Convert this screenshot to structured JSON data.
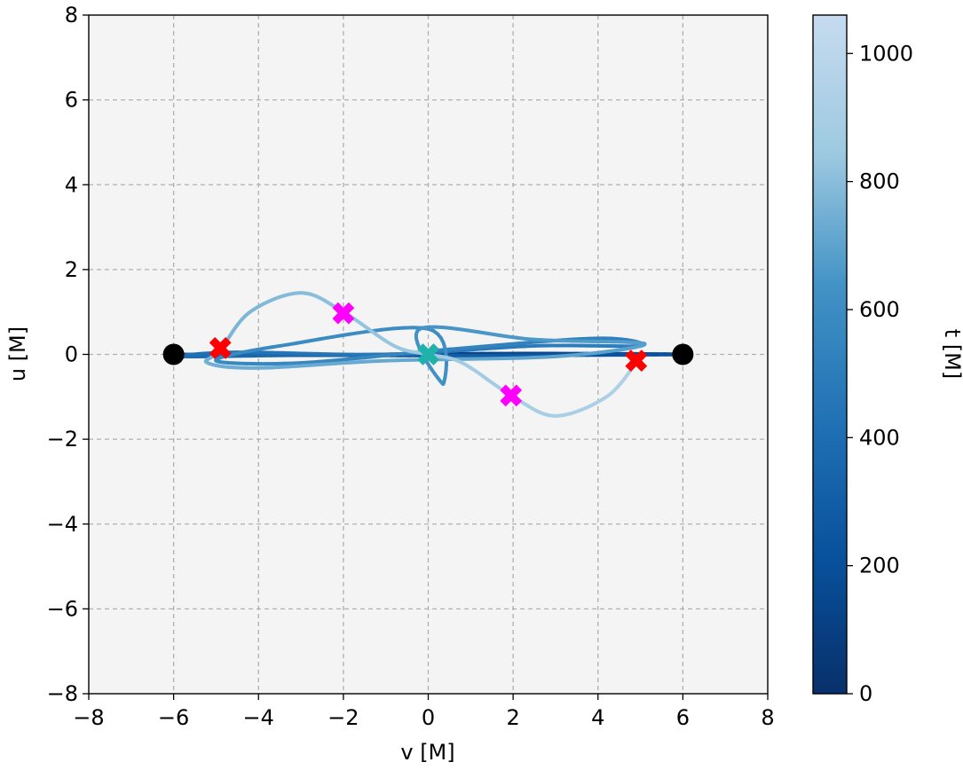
{
  "chart_data": {
    "type": "line",
    "title": "",
    "xlabel": "v [M]",
    "ylabel": "u [M]",
    "xlim": [
      -8,
      8
    ],
    "ylim": [
      -8,
      8
    ],
    "xticks": [
      -8,
      -6,
      -4,
      -2,
      0,
      2,
      4,
      6,
      8
    ],
    "yticks": [
      -8,
      -6,
      -4,
      -2,
      0,
      2,
      4,
      6,
      8
    ],
    "xtick_labels": [
      "−8",
      "−6",
      "−4",
      "−2",
      "0",
      "2",
      "4",
      "6",
      "8"
    ],
    "ytick_labels": [
      "−8",
      "−6",
      "−4",
      "−2",
      "0",
      "2",
      "4",
      "6",
      "8"
    ],
    "grid": true,
    "background_color": "#f4f4f4",
    "colormap": "Blues_r",
    "colorbar": {
      "label": "t [M]",
      "range": [
        0,
        1060
      ],
      "ticks": [
        0,
        200,
        400,
        600,
        800,
        1000
      ],
      "tick_labels": [
        "0",
        "200",
        "400",
        "600",
        "800",
        "1000"
      ],
      "color_low": "#08306b",
      "color_high": "#c6dbef"
    },
    "trajectory": [
      {
        "t": 0,
        "v": -6.0,
        "u": 0.0
      },
      {
        "t": 50,
        "v": -3.0,
        "u": -0.02
      },
      {
        "t": 100,
        "v": 0.0,
        "u": 0.01
      },
      {
        "t": 150,
        "v": 3.0,
        "u": 0.02
      },
      {
        "t": 200,
        "v": 6.0,
        "u": 0.0
      },
      {
        "t": 250,
        "v": 3.0,
        "u": -0.02
      },
      {
        "t": 300,
        "v": 0.0,
        "u": -0.03
      },
      {
        "t": 350,
        "v": -3.0,
        "u": -0.02
      },
      {
        "t": 400,
        "v": -5.8,
        "u": -0.05
      },
      {
        "t": 430,
        "v": -4.5,
        "u": 0.05
      },
      {
        "t": 460,
        "v": -1.0,
        "u": 0.0
      },
      {
        "t": 490,
        "v": 2.5,
        "u": 0.2
      },
      {
        "t": 510,
        "v": 5.0,
        "u": 0.2
      },
      {
        "t": 525,
        "v": 4.0,
        "u": 0.38
      },
      {
        "t": 540,
        "v": 0.5,
        "u": 0.12
      },
      {
        "t": 560,
        "v": -3.0,
        "u": -0.2
      },
      {
        "t": 575,
        "v": -5.0,
        "u": -0.15
      },
      {
        "t": 590,
        "v": -3.5,
        "u": 0.2
      },
      {
        "t": 610,
        "v": 0.0,
        "u": 0.6
      },
      {
        "t": 625,
        "v": 0.35,
        "u": -0.7
      },
      {
        "t": 640,
        "v": -0.2,
        "u": 0.6
      },
      {
        "t": 660,
        "v": 2.5,
        "u": 0.35
      },
      {
        "t": 680,
        "v": 5.1,
        "u": 0.25
      },
      {
        "t": 700,
        "v": 3.0,
        "u": -0.05
      },
      {
        "t": 720,
        "v": -1.0,
        "u": -0.15
      },
      {
        "t": 735,
        "v": -4.0,
        "u": -0.32
      },
      {
        "t": 745,
        "v": -5.2,
        "u": -0.2
      },
      {
        "t": 755,
        "v": -4.9,
        "u": 0.1
      },
      {
        "t": 775,
        "v": -4.2,
        "u": 1.0
      },
      {
        "t": 795,
        "v": -3.0,
        "u": 1.45
      },
      {
        "t": 815,
        "v": -2.0,
        "u": 1.0
      },
      {
        "t": 835,
        "v": -0.8,
        "u": 0.2
      },
      {
        "t": 850,
        "v": 0.0,
        "u": 0.0
      },
      {
        "t": 865,
        "v": 0.8,
        "u": -0.2
      },
      {
        "t": 885,
        "v": 2.0,
        "u": -1.0
      },
      {
        "t": 905,
        "v": 3.0,
        "u": -1.45
      },
      {
        "t": 925,
        "v": 4.2,
        "u": -1.0
      },
      {
        "t": 945,
        "v": 4.9,
        "u": -0.2
      }
    ],
    "markers": [
      {
        "name": "start",
        "shape": "circle",
        "color": "#000000",
        "points": [
          [
            -6,
            0
          ],
          [
            6,
            0
          ]
        ]
      },
      {
        "name": "red-cross",
        "shape": "x",
        "color": "#ff0000",
        "points": [
          [
            -4.9,
            0.15
          ],
          [
            4.9,
            -0.15
          ]
        ]
      },
      {
        "name": "magenta-cross",
        "shape": "x",
        "color": "#ff00ff",
        "points": [
          [
            -2.0,
            0.97
          ],
          [
            1.95,
            -0.97
          ]
        ]
      },
      {
        "name": "center",
        "shape": "x",
        "color": "#20b2aa",
        "points": [
          [
            0,
            0
          ]
        ]
      }
    ]
  }
}
